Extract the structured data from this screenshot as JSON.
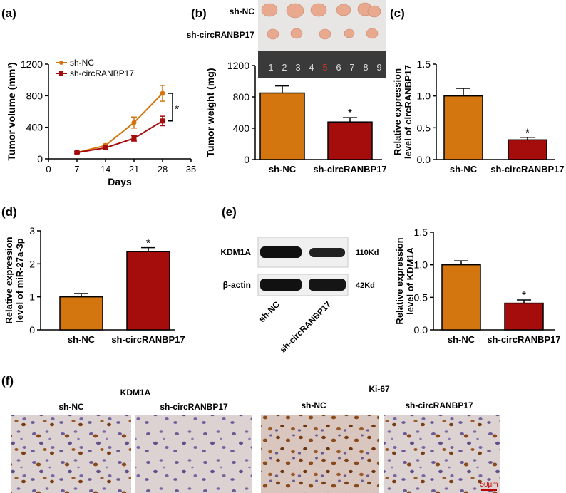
{
  "colors": {
    "nc": "#D4760F",
    "sh": "#A50C0C",
    "axis": "#000000"
  },
  "panels": {
    "a": {
      "letter": "(a)"
    },
    "b": {
      "letter": "(b)",
      "row_nc": "sh-NC",
      "row_sh": "sh-circRANBP17",
      "ruler": [
        "1",
        "2",
        "3",
        "4",
        "5",
        "6",
        "7",
        "8",
        "9"
      ]
    },
    "c": {
      "letter": "(c)"
    },
    "d": {
      "letter": "(d)"
    },
    "e": {
      "letter": "(e)",
      "band1": "KDM1A",
      "band2": "β-actin",
      "size1": "110Kd",
      "size2": "42Kd",
      "lane1": "sh-NC",
      "lane2": "sh-circRANBP17"
    },
    "f": {
      "letter": "(f)",
      "group1": "KDM1A",
      "group2": "Ki-67",
      "img_labels": [
        "sh-NC",
        "sh-circRANBP17",
        "sh-NC",
        "sh-circRANBP17"
      ],
      "scale_bar": "50μm"
    }
  },
  "sig": "*",
  "chart_data": [
    {
      "id": "a",
      "type": "line",
      "xlabel": "Days",
      "ylabel": "Tumor volume (mm³)",
      "xlim": [
        0,
        35
      ],
      "ylim": [
        0,
        1200
      ],
      "xticks": [
        0,
        7,
        14,
        21,
        28,
        35
      ],
      "yticks": [
        0,
        400,
        800,
        1200
      ],
      "legend_position": "top-left",
      "series": [
        {
          "name": "sh-NC",
          "x": [
            7,
            14,
            21,
            28
          ],
          "values": [
            80,
            170,
            460,
            830
          ],
          "err": [
            12,
            20,
            70,
            100
          ]
        },
        {
          "name": "sh-circRANBP17",
          "x": [
            7,
            14,
            21,
            28
          ],
          "values": [
            80,
            140,
            260,
            480
          ],
          "err": [
            10,
            15,
            35,
            60
          ]
        }
      ]
    },
    {
      "id": "b",
      "type": "bar",
      "ylabel": "Tumor weight (mg)",
      "ylim": [
        0,
        1200
      ],
      "yticks": [
        0,
        400,
        800,
        1200
      ],
      "categories": [
        "sh-NC",
        "sh-circRANBP17"
      ],
      "values": [
        850,
        480
      ],
      "err": [
        90,
        55
      ]
    },
    {
      "id": "c",
      "type": "bar",
      "ylabel": "Relative expression level of circRANBP17",
      "ylim": [
        0,
        1.5
      ],
      "yticks": [
        "0.0",
        "0.5",
        "1.0",
        "1.5"
      ],
      "categories": [
        "sh-NC",
        "sh-circRANBP17"
      ],
      "values": [
        1.0,
        0.31
      ],
      "err": [
        0.12,
        0.04
      ]
    },
    {
      "id": "d",
      "type": "bar",
      "ylabel": "Relative expression level of miR-27a-3p",
      "ylim": [
        0,
        3
      ],
      "yticks": [
        "0",
        "1",
        "2",
        "3"
      ],
      "categories": [
        "sh-NC",
        "sh-circRANBP17"
      ],
      "values": [
        1.0,
        2.37
      ],
      "err": [
        0.1,
        0.12
      ]
    },
    {
      "id": "e",
      "type": "bar",
      "ylabel": "Relative expression level of KDM1A",
      "ylim": [
        0,
        1.5
      ],
      "yticks": [
        "0.0",
        "0.5",
        "1.0",
        "1.5"
      ],
      "categories": [
        "sh-NC",
        "sh-circRANBP17"
      ],
      "values": [
        1.0,
        0.41
      ],
      "err": [
        0.06,
        0.05
      ]
    }
  ]
}
